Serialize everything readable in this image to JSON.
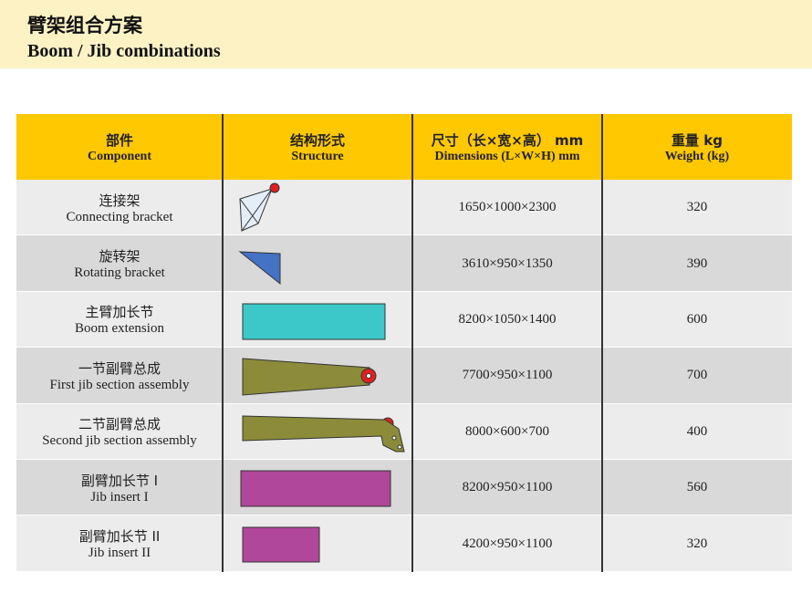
{
  "header": {
    "title": "臂架组合方案",
    "subtitle": "Boom / Jib combinations"
  },
  "table": {
    "columns": [
      {
        "cn": "部件",
        "en": "Component"
      },
      {
        "cn": "结构形式",
        "en": "Structure"
      },
      {
        "cn": "尺寸（长×宽×高） mm",
        "en": "Dimensions (L×W×H) mm"
      },
      {
        "cn": "重量 kg",
        "en": "Weight (kg)"
      }
    ],
    "rows": [
      {
        "cn": "连接架",
        "en": "Connecting bracket",
        "dims": "1650×1000×2300",
        "weight": 320
      },
      {
        "cn": "旋转架",
        "en": "Rotating bracket",
        "dims": "3610×950×1350",
        "weight": 390
      },
      {
        "cn": "主臂加长节",
        "en": "Boom extension",
        "dims": "8200×1050×1400",
        "weight": 600
      },
      {
        "cn": "一节副臂总成",
        "en": "First jib section assembly",
        "dims": "7700×950×1100",
        "weight": 700
      },
      {
        "cn": "二节副臂总成",
        "en": "Second jib section assembly",
        "dims": "8000×600×700",
        "weight": 400
      },
      {
        "cn": "副臂加长节 I",
        "en": "Jib insert I",
        "dims": "8200×950×1100",
        "weight": 560
      },
      {
        "cn": "副臂加长节 II",
        "en": "Jib insert II",
        "dims": "4200×950×1100",
        "weight": 320
      }
    ]
  }
}
